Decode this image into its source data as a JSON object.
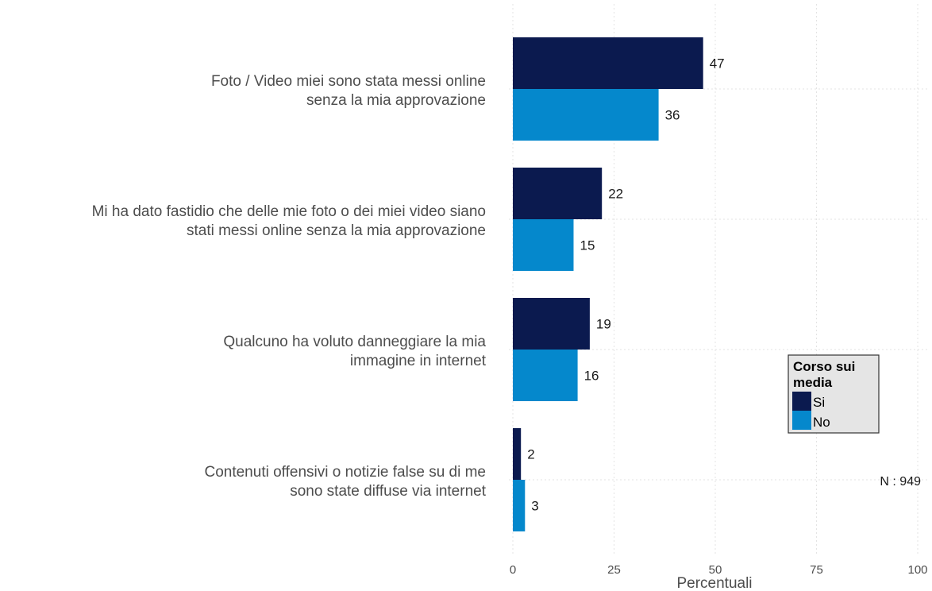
{
  "chart_data": {
    "type": "bar",
    "orientation": "horizontal",
    "categories": [
      [
        "Foto / Video miei sono stata messi online",
        "senza la mia approvazione"
      ],
      [
        "Mi ha dato fastidio che delle mie foto o dei miei video siano",
        "stati messi online senza la mia approvazione"
      ],
      [
        "Qualcuno ha voluto danneggiare la mia",
        "immagine in internet"
      ],
      [
        "Contenuti offensivi o notizie false su di me",
        "sono state diffuse via internet"
      ]
    ],
    "series": [
      {
        "name": "Si",
        "color": "#0b1a4f",
        "values": [
          47,
          22,
          19,
          2
        ]
      },
      {
        "name": "No",
        "color": "#0588cc",
        "values": [
          36,
          15,
          16,
          3
        ]
      }
    ],
    "xlabel": "Percentuali",
    "xlim": [
      0,
      100
    ],
    "xticks": [
      0,
      25,
      50,
      75,
      100
    ],
    "grid": true,
    "legend": {
      "title": [
        "Corso sui",
        "media"
      ],
      "placement": "right"
    },
    "note": "N : 949"
  }
}
